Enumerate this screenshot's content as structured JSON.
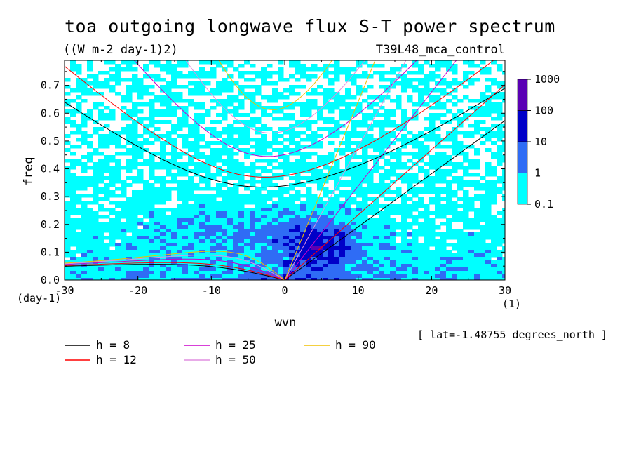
{
  "title": "toa outgoing longwave flux S-T power spectrum",
  "units": "((W m-2 day-1)2)",
  "experiment": "T39L48_mca_control",
  "latitude_note": "[ lat=-1.48755 degrees_north ]",
  "chart_data": {
    "type": "heatmap",
    "title": "toa outgoing longwave flux S-T power spectrum",
    "xlabel": "wvn",
    "ylabel": "freq",
    "x_unit": "(1)",
    "y_unit": "(day-1)",
    "xlim": [
      -30,
      30
    ],
    "ylim": [
      0,
      0.79
    ],
    "x_ticks": [
      "-30",
      "-20",
      "-10",
      "0",
      "10",
      "20",
      "30"
    ],
    "x_tick_values": [
      -30,
      -20,
      -10,
      0,
      10,
      20,
      30
    ],
    "y_ticks": [
      "0.0",
      "0.1",
      "0.2",
      "0.3",
      "0.4",
      "0.5",
      "0.6",
      "0.7"
    ],
    "y_tick_values": [
      0,
      0.1,
      0.2,
      0.3,
      0.4,
      0.5,
      0.6,
      0.7
    ],
    "color_levels": [
      "0.1",
      "1",
      "10",
      "100",
      "1000"
    ],
    "level_colors": [
      "#00ffff",
      "#2f6cf5",
      "#0000c8",
      "#5a00b4"
    ],
    "dispersion_curves": [
      {
        "label": "h =  8",
        "equivalent_depth_m": 8,
        "color": "#000000"
      },
      {
        "label": "h = 12",
        "equivalent_depth_m": 12,
        "color": "#ff0000"
      },
      {
        "label": "h = 25",
        "equivalent_depth_m": 25,
        "color": "#cc00cc"
      },
      {
        "label": "h = 50",
        "equivalent_depth_m": 50,
        "color": "#e08fe0"
      },
      {
        "label": "h = 90",
        "equivalent_depth_m": 90,
        "color": "#f0c000"
      }
    ]
  }
}
